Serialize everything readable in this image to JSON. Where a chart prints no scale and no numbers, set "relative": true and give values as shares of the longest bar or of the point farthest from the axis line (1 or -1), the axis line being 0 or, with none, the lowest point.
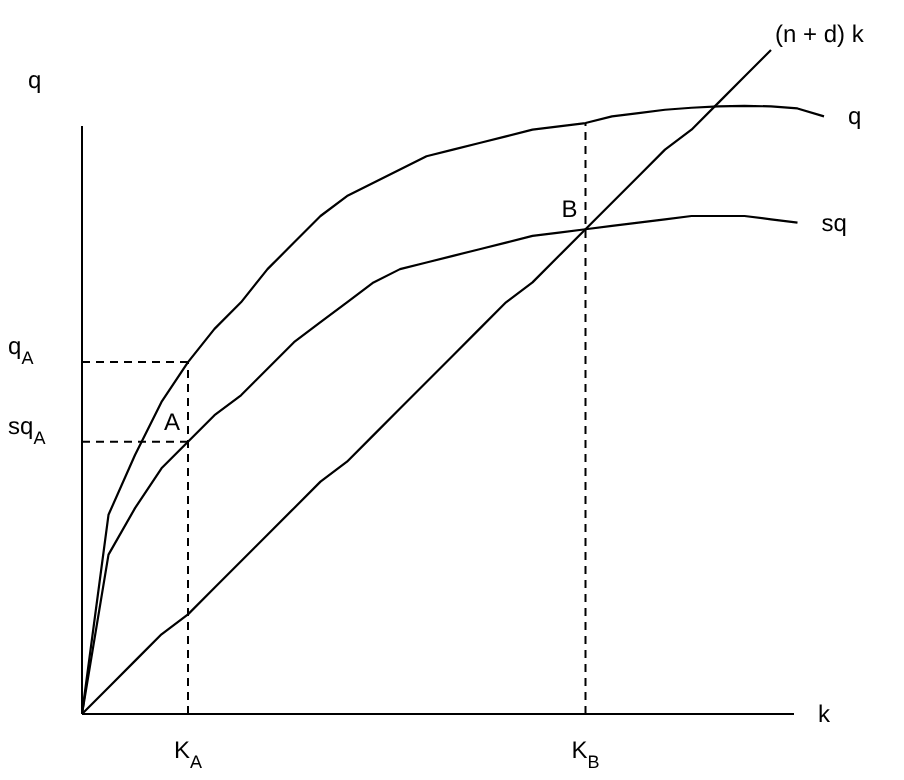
{
  "chart_data": {
    "type": "line",
    "relative": true,
    "xlabel": "k",
    "ylabel": "q",
    "categories": [
      null,
      null,
      null,
      null,
      "K$_{A}$",
      null,
      null,
      null,
      null,
      null,
      null,
      null,
      null,
      null,
      null,
      null,
      null,
      null,
      null,
      "K$_{B}$",
      null,
      null,
      null,
      null,
      null,
      null,
      null,
      null,
      null
    ],
    "series": [
      {
        "name": "q",
        "color": "#000000",
        "values": [
          0,
          0.3,
          0.39,
          0.47,
          0.53,
          0.58,
          0.62,
          0.67,
          0.71,
          0.75,
          0.78,
          0.8,
          0.82,
          0.84,
          0.85,
          0.86,
          0.87,
          0.88,
          0.885,
          0.89,
          0.9,
          0.905,
          0.91,
          0.913,
          0.915,
          0.916,
          0.915,
          0.912,
          0.9
        ]
      },
      {
        "name": "sq",
        "color": "#000000",
        "values": [
          0,
          0.24,
          0.31,
          0.37,
          0.41,
          0.45,
          0.48,
          0.52,
          0.56,
          0.59,
          0.62,
          0.65,
          0.67,
          0.68,
          0.69,
          0.7,
          0.71,
          0.72,
          0.725,
          0.73,
          0.735,
          0.74,
          0.745,
          0.75,
          0.75,
          0.75,
          0.745,
          0.74,
          null
        ]
      },
      {
        "name": "(n + d) k",
        "color": "#000000",
        "values": [
          0,
          0.04,
          0.08,
          0.12,
          0.15,
          0.19,
          0.23,
          0.27,
          0.31,
          0.35,
          0.38,
          0.42,
          0.46,
          0.5,
          0.54,
          0.58,
          0.62,
          0.65,
          0.69,
          0.73,
          0.77,
          0.81,
          0.85,
          0.88,
          0.92,
          0.96,
          1,
          null,
          null
        ]
      }
    ],
    "ref_lines": [
      {
        "axis": "x",
        "value": "K$_{A}$",
        "line_style": "dashed"
      },
      {
        "axis": "x",
        "value": "K$_{B}$",
        "line_style": "dashed"
      },
      {
        "axis": "y",
        "value": 0.53,
        "label": "q$_{A}$",
        "line_style": "dashed"
      },
      {
        "axis": "y",
        "value": 0.41,
        "label": "sq$_{A}$",
        "line_style": "dashed"
      }
    ],
    "annotations": [
      {
        "text": "A",
        "x": "K$_{A}$",
        "y": 0.41
      },
      {
        "text": "B",
        "x": "K$_{B}$",
        "y": 0.73
      }
    ],
    "grid": false,
    "legend": false,
    "marker": "none",
    "line_style": "solid"
  }
}
